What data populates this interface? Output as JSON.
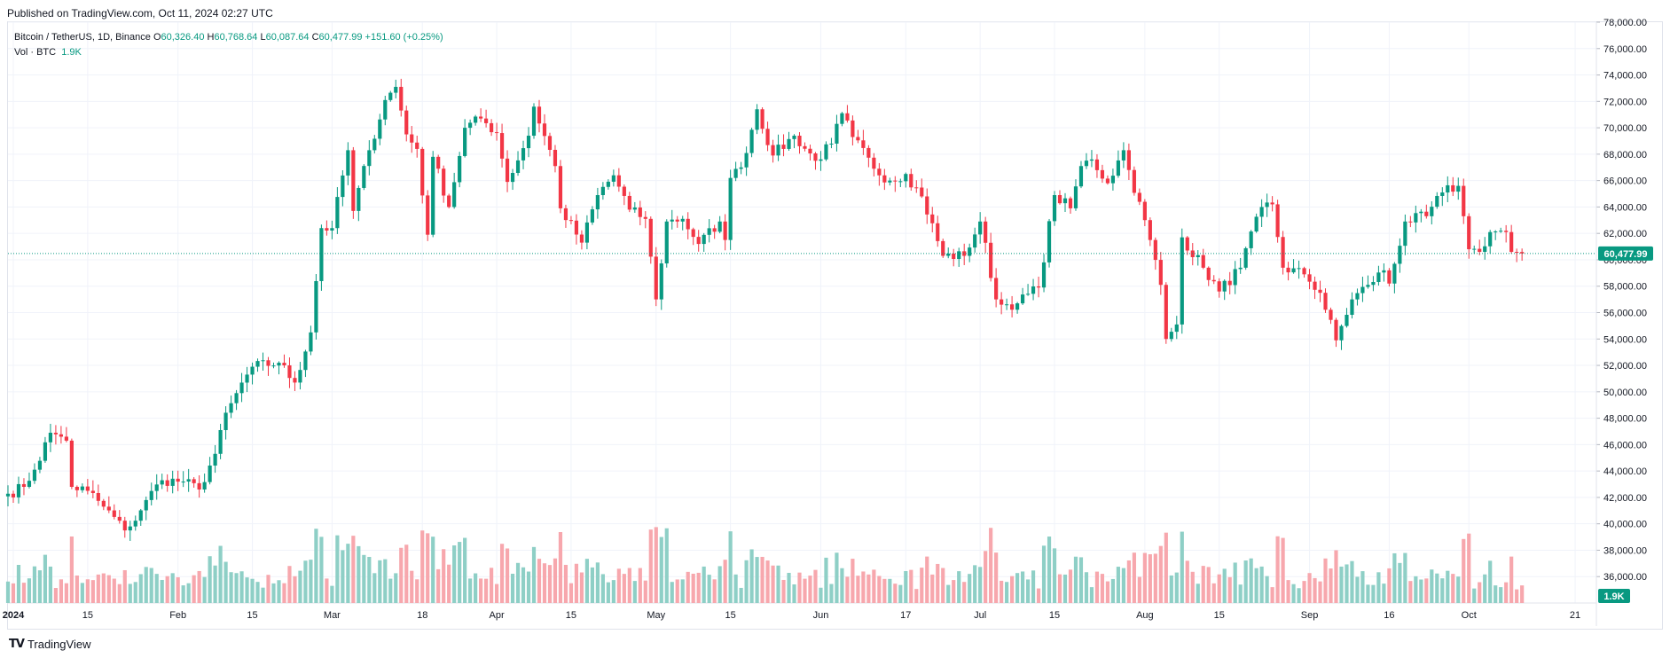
{
  "header": {
    "published": "Published on TradingView.com, Oct 11, 2024 02:27 UTC"
  },
  "legend": {
    "symbol": "Bitcoin / TetherUS, 1D, Binance",
    "o_label": "O",
    "o_value": "60,326.40",
    "h_label": "H",
    "h_value": "60,768.64",
    "l_label": "L",
    "l_value": "60,087.64",
    "c_label": "C",
    "c_value": "60,477.99",
    "change": "+151.60 (+0.25%)",
    "vol_label": "Vol · BTC",
    "vol_value": "1.9K"
  },
  "footer": {
    "brand": "TradingView"
  },
  "colors": {
    "up": "#089981",
    "down": "#f23645",
    "up_vol": "#8ecfc6",
    "down_vol": "#f7a7ad",
    "grid": "#f0f3fa",
    "axis_text": "#131722"
  },
  "chart_data": {
    "type": "candlestick",
    "y_axis": {
      "side": "right",
      "ticks": [
        "36,000.00",
        "38,000.00",
        "40,000.00",
        "42,000.00",
        "44,000.00",
        "46,000.00",
        "48,000.00",
        "50,000.00",
        "52,000.00",
        "54,000.00",
        "56,000.00",
        "58,000.00",
        "60,000.00",
        "62,000.00",
        "64,000.00",
        "66,000.00",
        "68,000.00",
        "70,000.00",
        "72,000.00",
        "74,000.00",
        "76,000.00",
        "78,000.00"
      ],
      "range": [
        34000,
        78000
      ]
    },
    "x_axis": {
      "ticks": [
        {
          "date": "2024-01-01",
          "label": "2024",
          "bold": true
        },
        {
          "date": "2024-01-15",
          "label": "15"
        },
        {
          "date": "2024-02-01",
          "label": "Feb"
        },
        {
          "date": "2024-02-15",
          "label": "15"
        },
        {
          "date": "2024-03-01",
          "label": "Mar"
        },
        {
          "date": "2024-03-18",
          "label": "18"
        },
        {
          "date": "2024-04-01",
          "label": "Apr"
        },
        {
          "date": "2024-04-15",
          "label": "15"
        },
        {
          "date": "2024-05-01",
          "label": "May"
        },
        {
          "date": "2024-05-15",
          "label": "15"
        },
        {
          "date": "2024-06-01",
          "label": "Jun"
        },
        {
          "date": "2024-06-17",
          "label": "17"
        },
        {
          "date": "2024-07-01",
          "label": "Jul"
        },
        {
          "date": "2024-07-15",
          "label": "15"
        },
        {
          "date": "2024-08-01",
          "label": "Aug"
        },
        {
          "date": "2024-08-15",
          "label": "15"
        },
        {
          "date": "2024-09-01",
          "label": "Sep"
        },
        {
          "date": "2024-09-16",
          "label": "16"
        },
        {
          "date": "2024-10-01",
          "label": "Oct"
        },
        {
          "date": "2024-10-21",
          "label": "21"
        }
      ],
      "start_date": "2023-12-31",
      "end_date": "2024-10-25"
    },
    "last_price_label": "60,477.99",
    "last_volume_label": "1.9K",
    "close_anchors": [
      [
        "2023-12-31",
        42280
      ],
      [
        "2024-01-03",
        42800
      ],
      [
        "2024-01-05",
        44100
      ],
      [
        "2024-01-08",
        46900
      ],
      [
        "2024-01-10",
        46600
      ],
      [
        "2024-01-11",
        46300
      ],
      [
        "2024-01-12",
        42800
      ],
      [
        "2024-01-15",
        42500
      ],
      [
        "2024-01-18",
        41300
      ],
      [
        "2024-01-22",
        39500
      ],
      [
        "2024-01-23",
        39800
      ],
      [
        "2024-01-26",
        41800
      ],
      [
        "2024-01-29",
        43300
      ],
      [
        "2024-02-02",
        43200
      ],
      [
        "2024-02-05",
        42600
      ],
      [
        "2024-02-08",
        45300
      ],
      [
        "2024-02-09",
        47100
      ],
      [
        "2024-02-12",
        49900
      ],
      [
        "2024-02-15",
        51900
      ],
      [
        "2024-02-20",
        52200
      ],
      [
        "2024-02-23",
        50700
      ],
      [
        "2024-02-26",
        54500
      ],
      [
        "2024-02-28",
        62400
      ],
      [
        "2024-03-01",
        62400
      ],
      [
        "2024-03-04",
        68300
      ],
      [
        "2024-03-05",
        63700
      ],
      [
        "2024-03-08",
        68300
      ],
      [
        "2024-03-11",
        72100
      ],
      [
        "2024-03-13",
        73100
      ],
      [
        "2024-03-15",
        69500
      ],
      [
        "2024-03-17",
        68400
      ],
      [
        "2024-03-19",
        61900
      ],
      [
        "2024-03-20",
        67800
      ],
      [
        "2024-03-23",
        64000
      ],
      [
        "2024-03-26",
        70000
      ],
      [
        "2024-03-29",
        70700
      ],
      [
        "2024-04-01",
        69600
      ],
      [
        "2024-04-03",
        65900
      ],
      [
        "2024-04-07",
        69400
      ],
      [
        "2024-04-08",
        71600
      ],
      [
        "2024-04-12",
        67100
      ],
      [
        "2024-04-13",
        63900
      ],
      [
        "2024-04-17",
        61300
      ],
      [
        "2024-04-20",
        64900
      ],
      [
        "2024-04-23",
        66400
      ],
      [
        "2024-04-26",
        63800
      ],
      [
        "2024-04-29",
        63100
      ],
      [
        "2024-05-01",
        57000
      ],
      [
        "2024-05-03",
        62900
      ],
      [
        "2024-05-06",
        63100
      ],
      [
        "2024-05-09",
        61200
      ],
      [
        "2024-05-13",
        62900
      ],
      [
        "2024-05-14",
        61500
      ],
      [
        "2024-05-15",
        66200
      ],
      [
        "2024-05-17",
        67000
      ],
      [
        "2024-05-20",
        71400
      ],
      [
        "2024-05-23",
        67900
      ],
      [
        "2024-05-27",
        69400
      ],
      [
        "2024-05-31",
        67500
      ],
      [
        "2024-06-03",
        68800
      ],
      [
        "2024-06-05",
        71100
      ],
      [
        "2024-06-07",
        69300
      ],
      [
        "2024-06-11",
        66900
      ],
      [
        "2024-06-14",
        66000
      ],
      [
        "2024-06-17",
        66500
      ],
      [
        "2024-06-20",
        64800
      ],
      [
        "2024-06-24",
        60300
      ],
      [
        "2024-06-28",
        60300
      ],
      [
        "2024-07-01",
        62900
      ],
      [
        "2024-07-04",
        57000
      ],
      [
        "2024-07-05",
        56600
      ],
      [
        "2024-07-08",
        56700
      ],
      [
        "2024-07-12",
        57900
      ],
      [
        "2024-07-15",
        64900
      ],
      [
        "2024-07-18",
        63900
      ],
      [
        "2024-07-20",
        67100
      ],
      [
        "2024-07-22",
        67600
      ],
      [
        "2024-07-25",
        65800
      ],
      [
        "2024-07-28",
        68300
      ],
      [
        "2024-07-29",
        66800
      ],
      [
        "2024-08-02",
        61500
      ],
      [
        "2024-08-04",
        58100
      ],
      [
        "2024-08-05",
        54000
      ],
      [
        "2024-08-07",
        55100
      ],
      [
        "2024-08-08",
        61700
      ],
      [
        "2024-08-12",
        59400
      ],
      [
        "2024-08-15",
        57600
      ],
      [
        "2024-08-19",
        59400
      ],
      [
        "2024-08-23",
        64000
      ],
      [
        "2024-08-25",
        64200
      ],
      [
        "2024-08-27",
        59400
      ],
      [
        "2024-08-31",
        58900
      ],
      [
        "2024-09-03",
        57500
      ],
      [
        "2024-09-06",
        53900
      ],
      [
        "2024-09-09",
        57000
      ],
      [
        "2024-09-12",
        58100
      ],
      [
        "2024-09-15",
        59200
      ],
      [
        "2024-09-16",
        58200
      ],
      [
        "2024-09-19",
        62900
      ],
      [
        "2024-09-23",
        63300
      ],
      [
        "2024-09-26",
        65100
      ],
      [
        "2024-09-29",
        65600
      ],
      [
        "2024-09-30",
        63300
      ],
      [
        "2024-10-01",
        60800
      ],
      [
        "2024-10-03",
        60600
      ],
      [
        "2024-10-05",
        62100
      ],
      [
        "2024-10-07",
        62200
      ],
      [
        "2024-10-08",
        62100
      ],
      [
        "2024-10-09",
        60600
      ],
      [
        "2024-10-11",
        60478
      ]
    ]
  }
}
